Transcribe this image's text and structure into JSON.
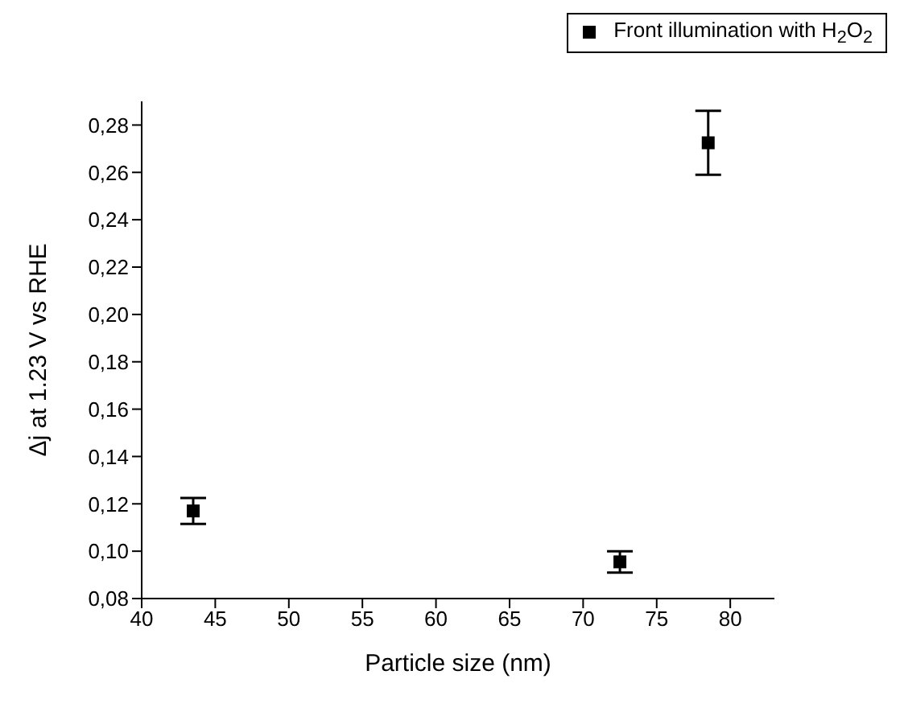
{
  "chart_data": {
    "type": "scatter",
    "xlabel": "Particle size (nm)",
    "ylabel": "Δj  at 1.23 V vs RHE",
    "x": [
      43.5,
      72.5,
      78.5
    ],
    "series": [
      {
        "name": "Front illumination with H$_{2}$O$_{2}$",
        "color": "#000000",
        "values": [
          0.117,
          0.0955,
          0.2725
        ],
        "errors": [
          0.0055,
          0.0045,
          0.0135
        ]
      }
    ],
    "xlim": [
      40,
      83
    ],
    "xticks": [
      40,
      45,
      50,
      55,
      60,
      65,
      70,
      75,
      80
    ],
    "ylim": [
      0.08,
      0.29
    ],
    "yticks": [
      {
        "value": 0.08,
        "label": "0,08"
      },
      {
        "value": 0.1,
        "label": "0,10"
      },
      {
        "value": 0.12,
        "label": "0,12"
      },
      {
        "value": 0.14,
        "label": "0,14"
      },
      {
        "value": 0.16,
        "label": "0,16"
      },
      {
        "value": 0.18,
        "label": "0,18"
      },
      {
        "value": 0.2,
        "label": "0,20"
      },
      {
        "value": 0.22,
        "label": "0,22"
      },
      {
        "value": 0.24,
        "label": "0,24"
      },
      {
        "value": 0.26,
        "label": "0,26"
      },
      {
        "value": 0.28,
        "label": "0,28"
      }
    ],
    "marker": "square",
    "legend": "top right",
    "grid": false
  }
}
